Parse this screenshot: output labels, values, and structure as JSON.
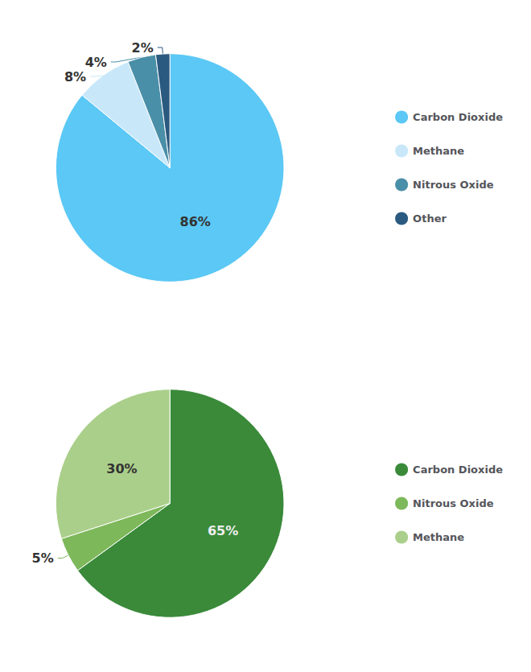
{
  "chart_data": [
    {
      "type": "pie",
      "categories": [
        "Carbon Dioxide",
        "Methane",
        "Nitrous Oxide",
        "Other"
      ],
      "values": [
        86,
        8,
        4,
        2
      ],
      "value_labels": [
        "86%",
        "8%",
        "4%",
        "2%"
      ],
      "colors": [
        "#5BC8F5",
        "#C8E8FA",
        "#4A8FA8",
        "#2B5A80"
      ],
      "data_labels": true,
      "legend": "right"
    },
    {
      "type": "pie",
      "categories": [
        "Carbon Dioxide",
        "Nitrous Oxide",
        "Methane"
      ],
      "values": [
        65,
        5,
        30
      ],
      "value_labels": [
        "65%",
        "5%",
        "30%"
      ],
      "colors": [
        "#3A8A3A",
        "#7DB85A",
        "#AACF8A"
      ],
      "data_labels": true,
      "legend": "right"
    }
  ]
}
